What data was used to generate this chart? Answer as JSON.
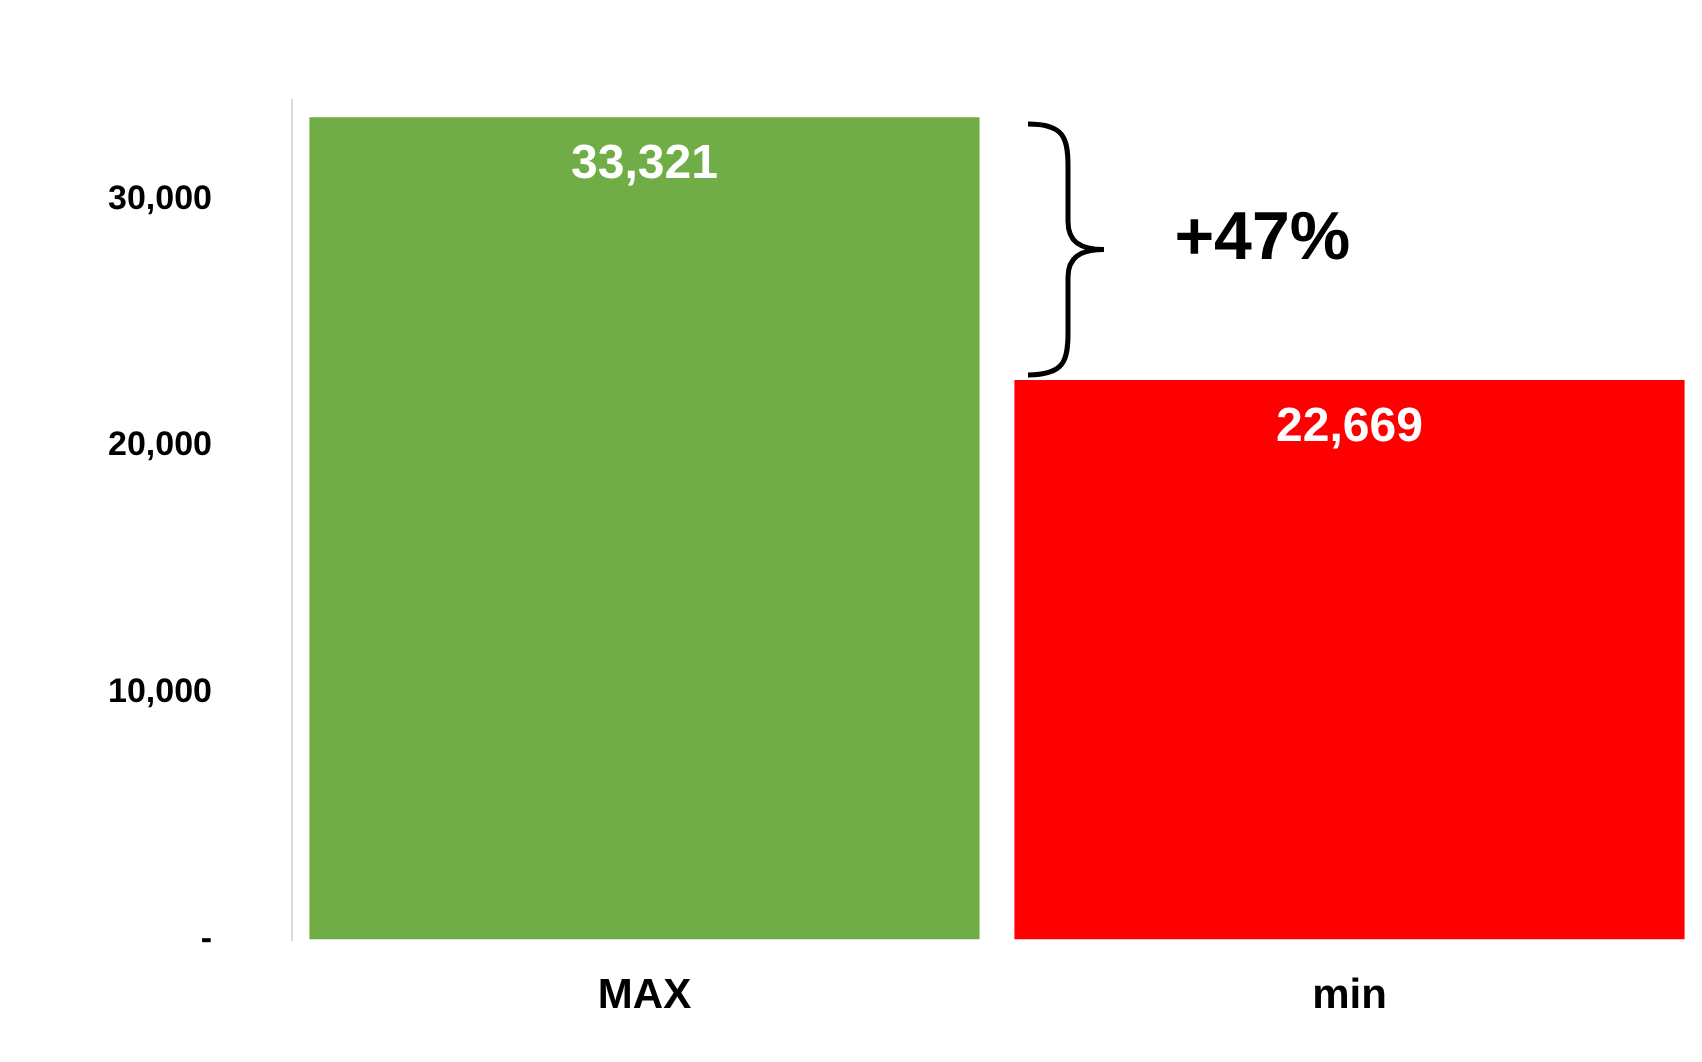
{
  "chart_data": {
    "type": "bar",
    "categories": [
      "MAX",
      "min"
    ],
    "values": [
      33321,
      22669
    ],
    "value_labels": [
      "33,321",
      "22,669"
    ],
    "colors": [
      "#70ad47",
      "#ff0000"
    ],
    "ylim": [
      0,
      34000
    ],
    "yticks": [
      {
        "value": 0,
        "label": "-"
      },
      {
        "value": 10000,
        "label": "10,000"
      },
      {
        "value": 20000,
        "label": "20,000"
      },
      {
        "value": 30000,
        "label": "30,000"
      }
    ],
    "grid": false,
    "legend": false,
    "annotations": [
      "+47%"
    ]
  }
}
